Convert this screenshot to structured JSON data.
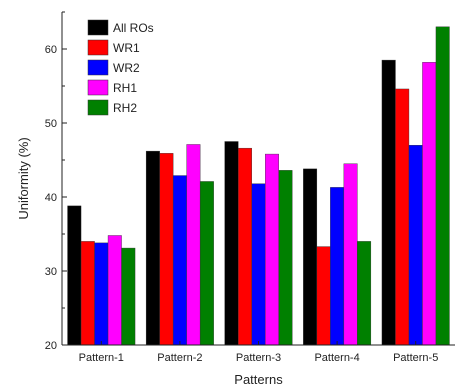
{
  "chart_data": {
    "type": "bar",
    "categories": [
      "Pattern-1",
      "Pattern-2",
      "Pattern-3",
      "Pattern-4",
      "Pattern-5"
    ],
    "series": [
      {
        "name": "All ROs",
        "color": "#000000",
        "values": [
          38.8,
          46.2,
          47.5,
          43.8,
          58.5
        ]
      },
      {
        "name": "WR1",
        "color": "#ff0000",
        "values": [
          34.0,
          45.9,
          46.6,
          33.3,
          54.6
        ]
      },
      {
        "name": "WR2",
        "color": "#0000ff",
        "values": [
          33.8,
          42.9,
          41.8,
          41.3,
          47.0
        ]
      },
      {
        "name": "RH1",
        "color": "#ff00ff",
        "values": [
          34.8,
          47.1,
          45.8,
          44.5,
          58.2
        ]
      },
      {
        "name": "RH2",
        "color": "#008000",
        "values": [
          33.1,
          42.1,
          43.6,
          34.0,
          63.0
        ]
      }
    ],
    "xlabel": "Patterns",
    "ylabel": "Uniformity (%)",
    "ylim": [
      20,
      65
    ],
    "yticks": [
      20,
      30,
      40,
      50,
      60
    ],
    "grid": false,
    "legend_position": "top-left"
  }
}
